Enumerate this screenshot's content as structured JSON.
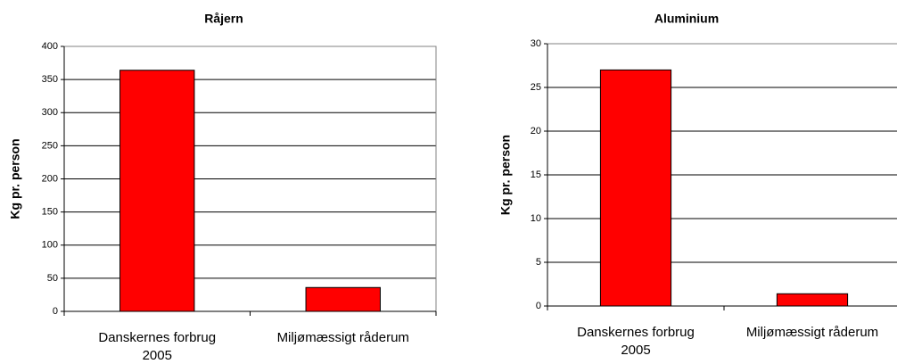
{
  "chart_data": [
    {
      "type": "bar",
      "title": "Råjern",
      "y_label": "Kg pr. person",
      "categories": [
        "Danskernes forbrug 2005",
        "Miljømæssigt råderum"
      ],
      "values": [
        364,
        36
      ],
      "color": "#ff0000",
      "ylim": [
        0,
        400
      ],
      "yticks": [
        0,
        50,
        100,
        150,
        200,
        250,
        300,
        350,
        400
      ],
      "grid": true
    },
    {
      "type": "bar",
      "title": "Aluminium",
      "y_label": "Kg pr. person",
      "categories": [
        "Danskernes forbrug 2005",
        "Miljømæssigt råderum"
      ],
      "values": [
        27,
        1.4
      ],
      "color": "#ff0000",
      "ylim": [
        0,
        30
      ],
      "yticks": [
        0,
        5,
        10,
        15,
        20,
        25,
        30
      ],
      "grid": true
    }
  ]
}
